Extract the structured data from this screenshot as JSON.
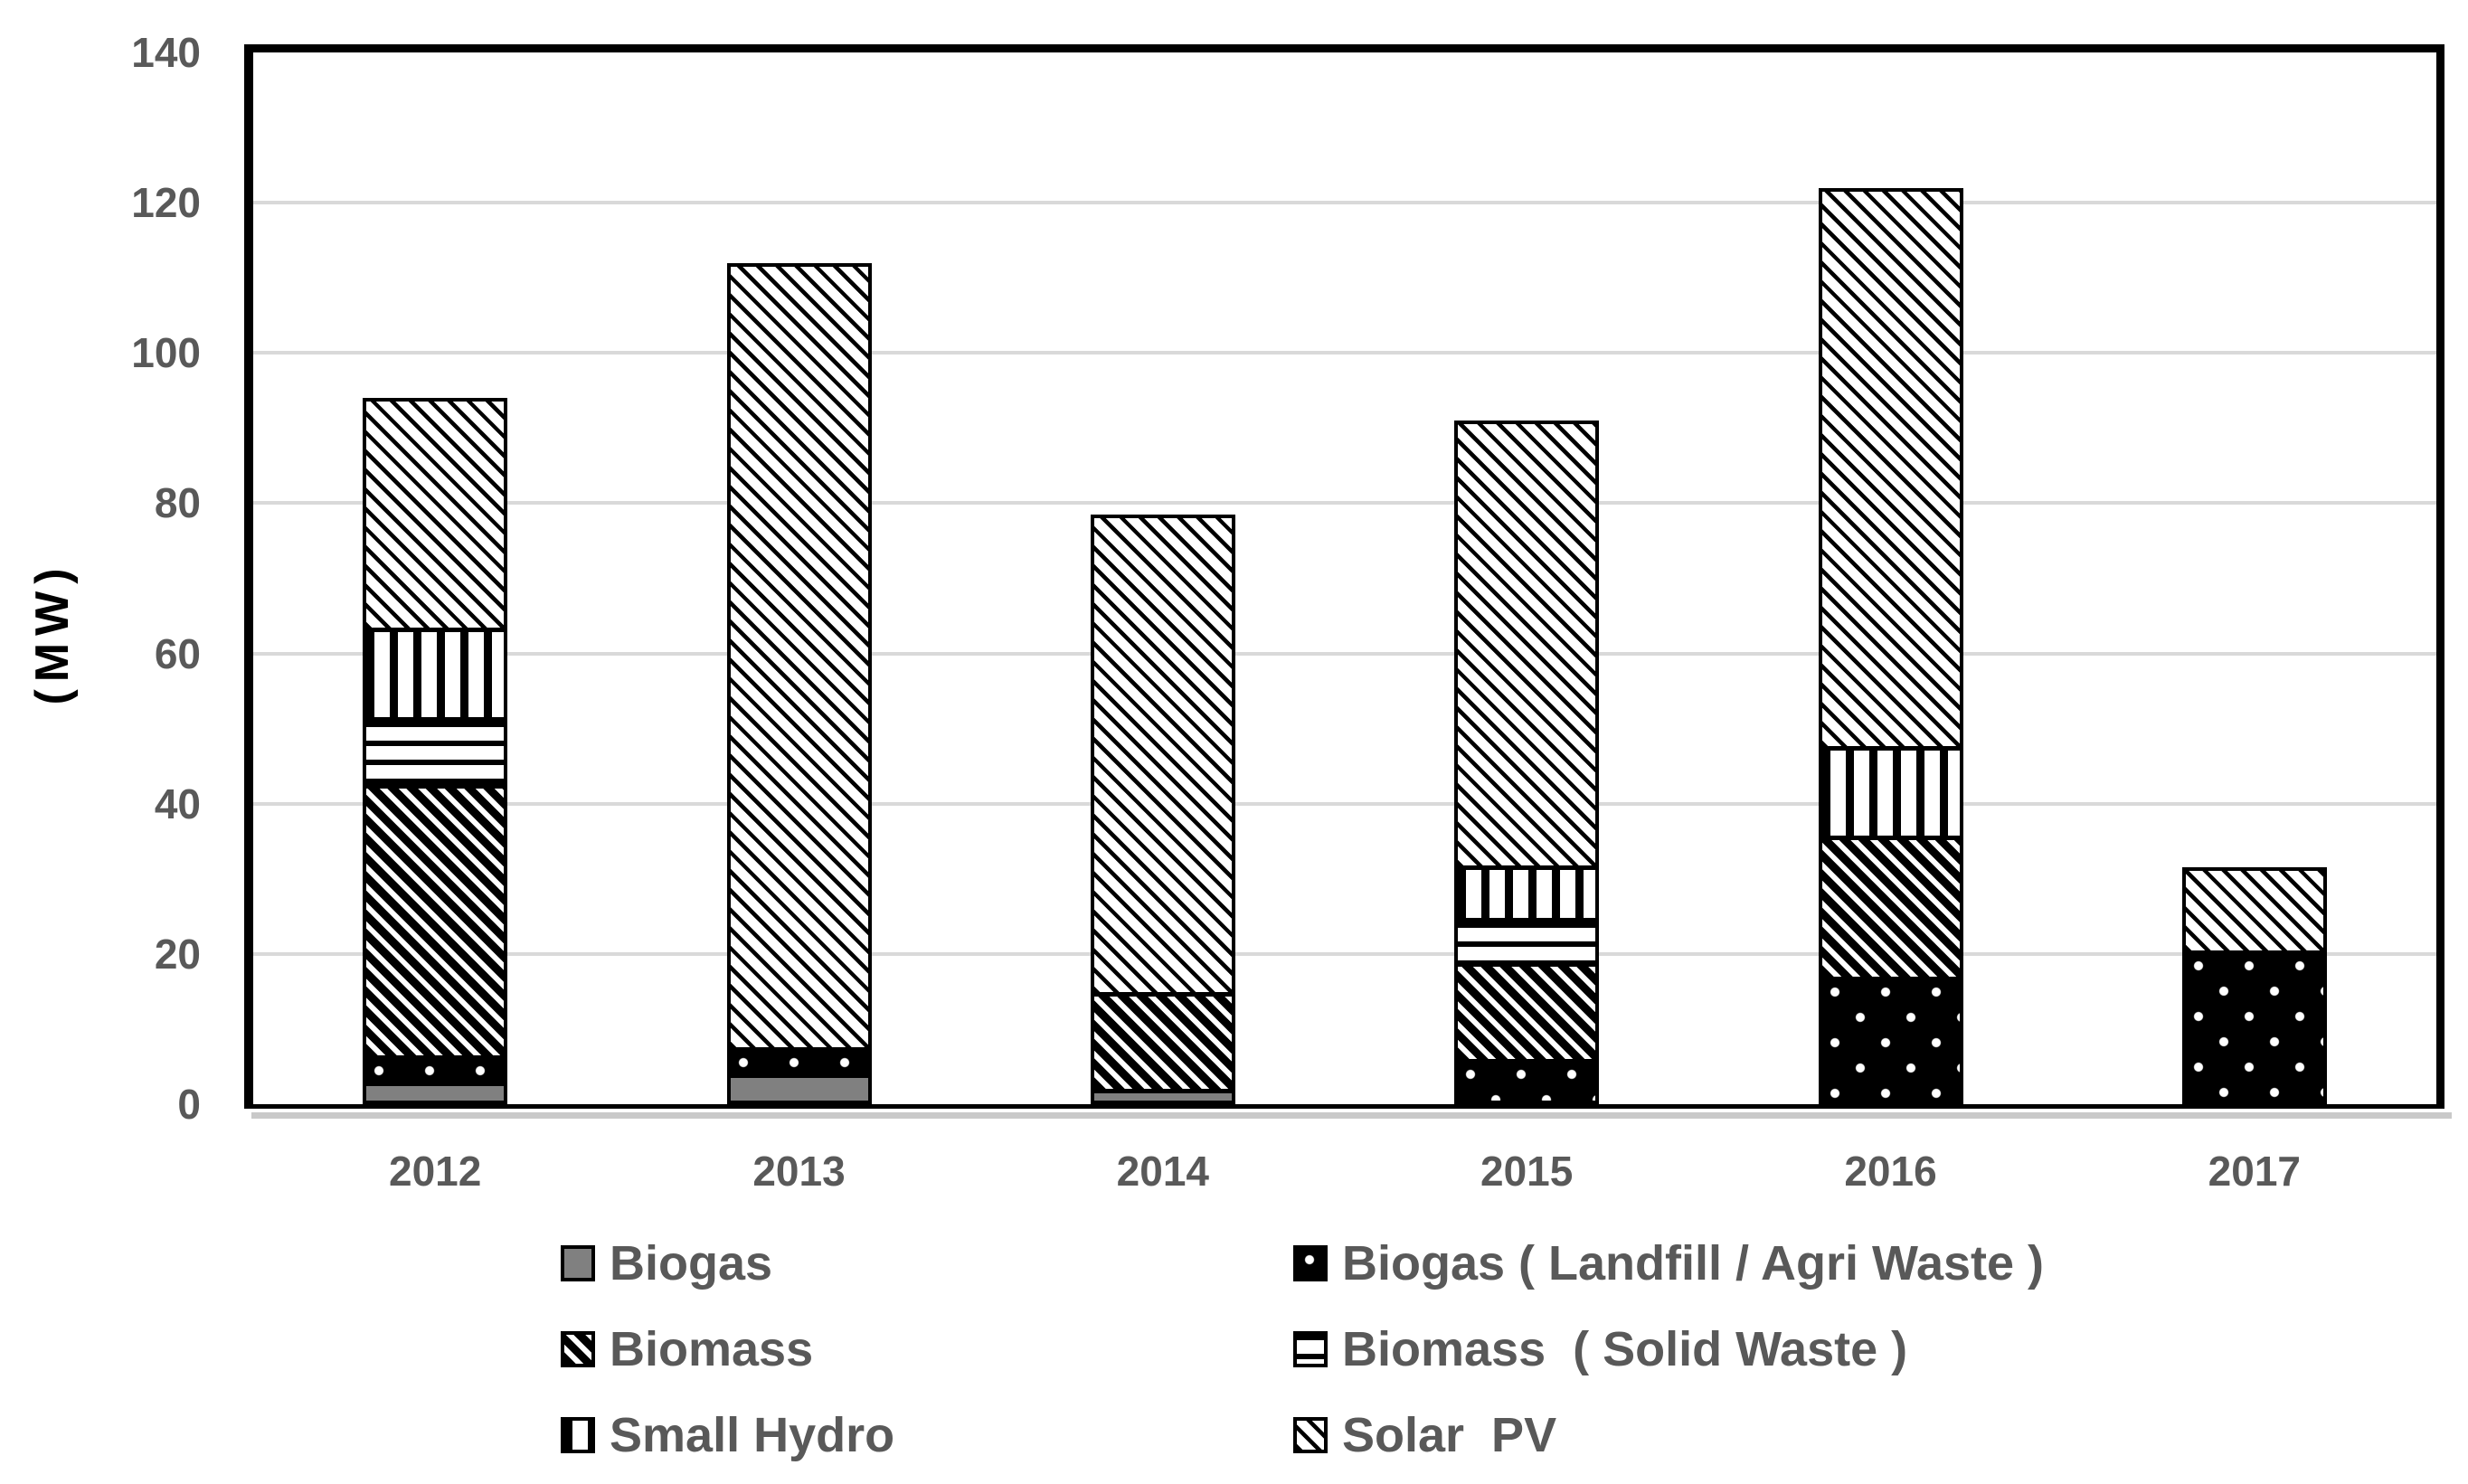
{
  "y_axis": {
    "title": "(MW)"
  },
  "colors": {
    "text_gray": "#595959",
    "gridline": "#d9d9d9",
    "frame_black": "#000000",
    "biogas_gray": "#808080",
    "background": "#ffffff",
    "baseline_shadow": "#c9c9c9"
  },
  "legend": {
    "columns": [
      {
        "items": [
          {
            "label": "Biogas",
            "pattern": "solid-gray"
          },
          {
            "label": "Biomass",
            "pattern": "dark-diagonal"
          },
          {
            "label": "Small Hydro",
            "pattern": "vertical-lines"
          }
        ]
      },
      {
        "items": [
          {
            "label": "Biogas ( Landfill / Agri Waste )",
            "pattern": "black-dots"
          },
          {
            "label": "Biomass  ( Solid Waste )",
            "pattern": "horizontal-lines"
          },
          {
            "label": "Solar  PV",
            "pattern": "light-diagonal"
          }
        ]
      }
    ]
  },
  "chart_data": {
    "type": "bar",
    "stacked": true,
    "title": "",
    "xlabel": "",
    "ylabel": "(MW)",
    "ylim": [
      0,
      140
    ],
    "y_ticks": [
      0,
      20,
      40,
      60,
      80,
      100,
      120,
      140
    ],
    "grid": true,
    "legend_position": "bottom",
    "categories": [
      "2012",
      "2013",
      "2014",
      "2015",
      "2016",
      "2017"
    ],
    "series": [
      {
        "name": "Biogas",
        "pattern": "solid-gray",
        "values": [
          2,
          3,
          1,
          0,
          0,
          0
        ]
      },
      {
        "name": "Biogas ( Landfill / Agri Waste )",
        "pattern": "black-dots",
        "values": [
          3.5,
          3.5,
          0,
          5,
          16,
          20
        ]
      },
      {
        "name": "Biomass",
        "pattern": "dark-diagonal",
        "values": [
          36.5,
          0,
          13,
          13,
          19,
          0
        ]
      },
      {
        "name": "Biomass  ( Solid Waste )",
        "pattern": "horizontal-lines",
        "values": [
          9,
          0,
          0,
          6,
          0,
          0
        ]
      },
      {
        "name": "Small Hydro",
        "pattern": "vertical-lines",
        "values": [
          12,
          0,
          0,
          7,
          12,
          0
        ]
      },
      {
        "name": "Solar  PV",
        "pattern": "light-diagonal",
        "values": [
          31,
          105.5,
          64.5,
          60,
          75,
          11.5
        ]
      }
    ],
    "totals": [
      94,
      112,
      78.5,
      91,
      122,
      31.5
    ]
  }
}
